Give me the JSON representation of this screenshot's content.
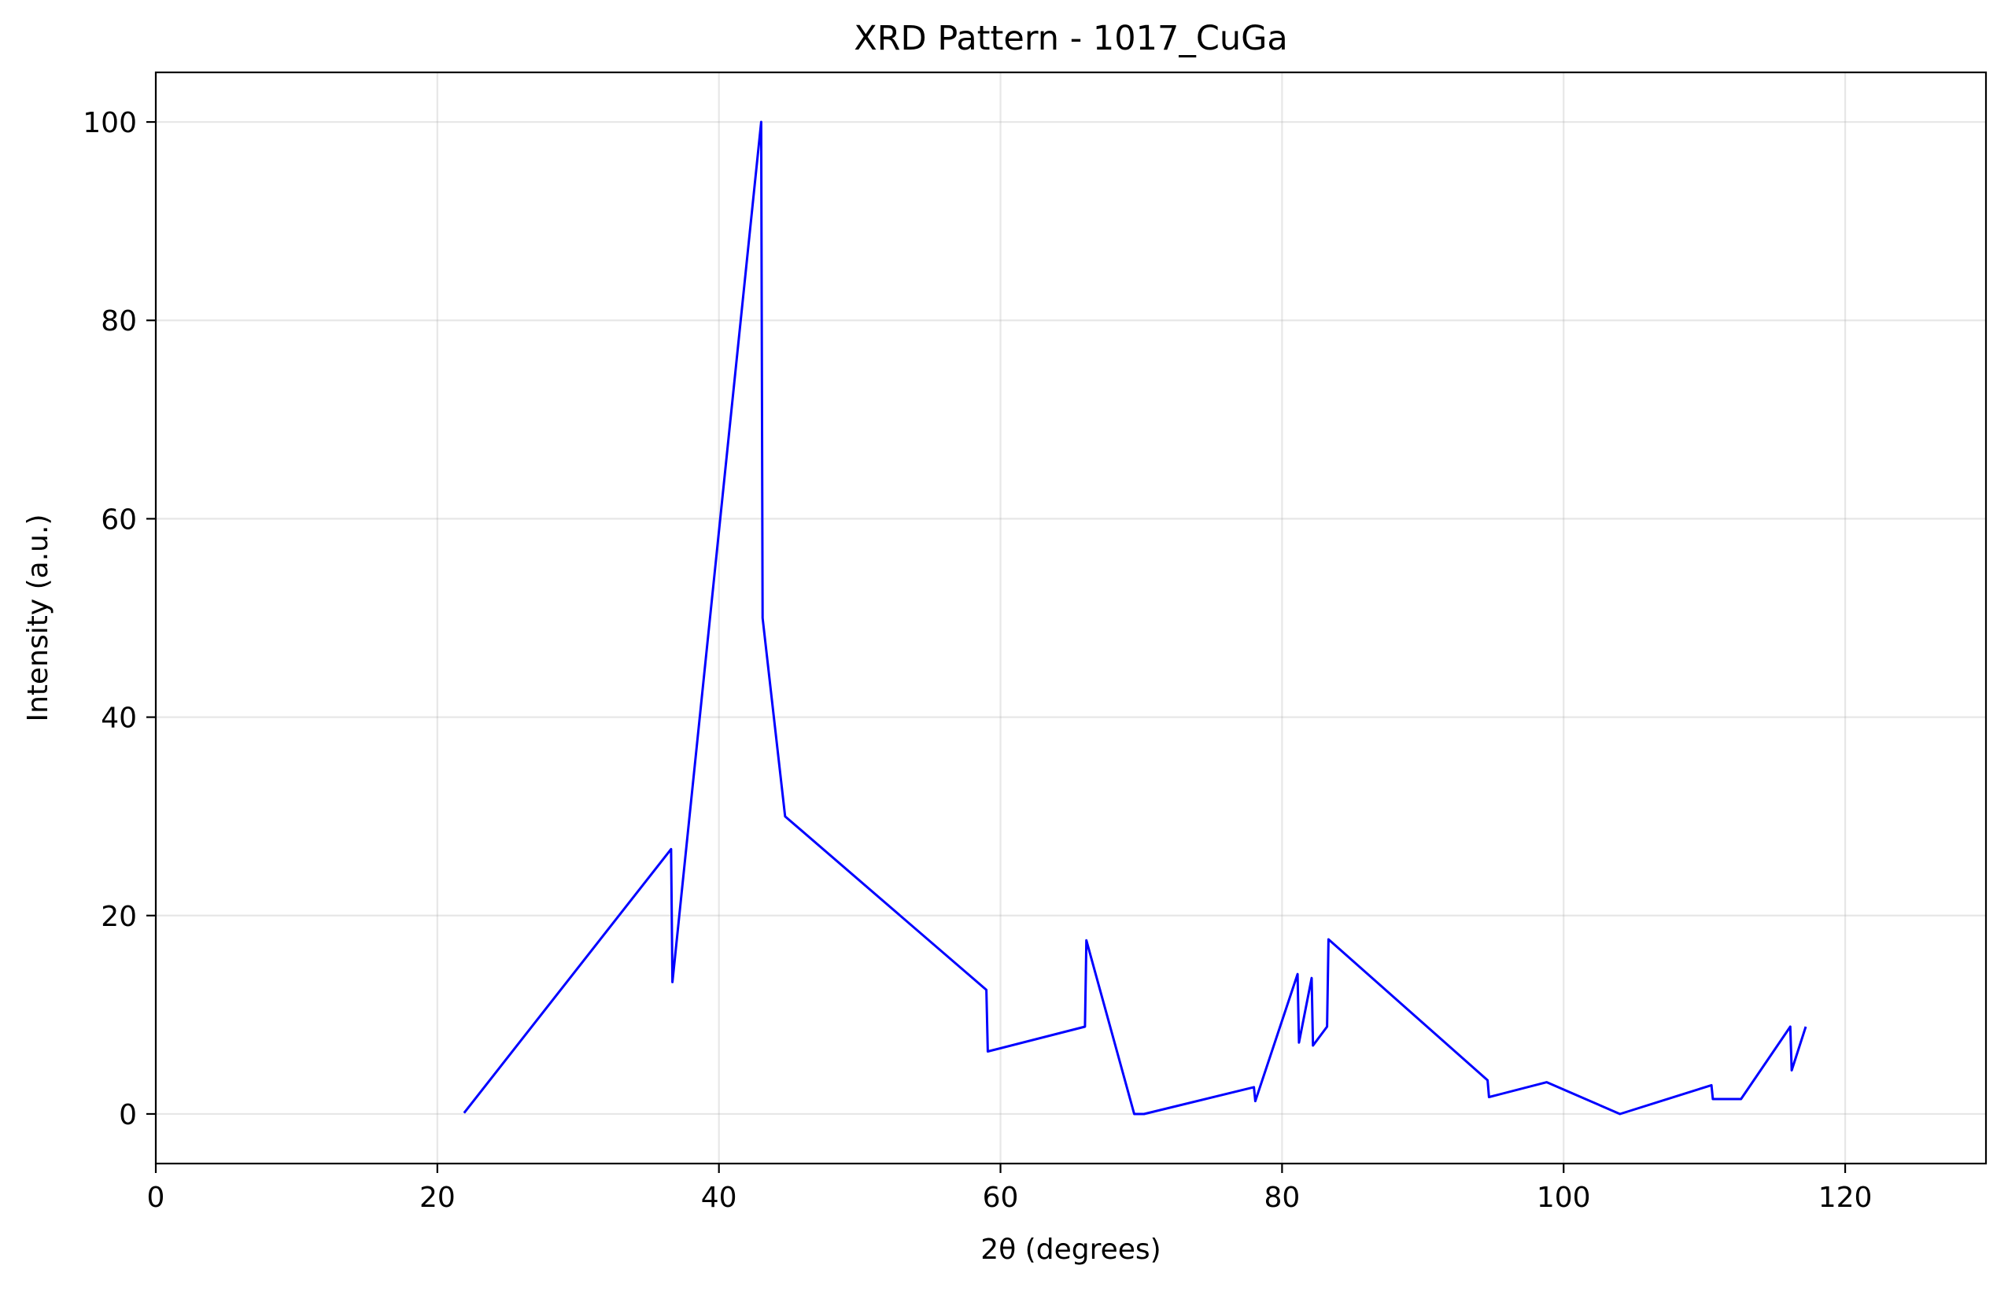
{
  "chart_data": {
    "type": "line",
    "title": "XRD Pattern - 1017_CuGa",
    "xlabel": "2θ (degrees)",
    "ylabel": "Intensity (a.u.)",
    "xlim": [
      0,
      130
    ],
    "ylim": [
      -5,
      105
    ],
    "xticks": [
      0,
      20,
      40,
      60,
      80,
      100,
      120
    ],
    "yticks": [
      0,
      20,
      40,
      60,
      80,
      100
    ],
    "grid": true,
    "legend": "none",
    "series_color": "#0000ff",
    "series": [
      {
        "x": [
          21.9,
          36.6,
          36.7,
          43.0,
          43.1,
          44.7,
          59.0,
          59.1,
          66.0,
          66.1,
          69.5,
          70.2,
          78.0,
          78.1,
          81.1,
          81.2,
          82.1,
          82.2,
          83.2,
          83.3,
          94.6,
          94.7,
          98.8,
          104.0,
          110.5,
          110.6,
          112.6,
          116.1,
          116.2,
          117.2
        ],
        "y": [
          0.1,
          26.7,
          13.3,
          100.0,
          50.0,
          30.0,
          12.5,
          6.3,
          8.8,
          17.5,
          0.0,
          0.0,
          2.7,
          1.3,
          14.1,
          7.2,
          13.7,
          6.9,
          8.8,
          17.6,
          3.4,
          1.7,
          3.2,
          0.0,
          2.9,
          1.5,
          1.5,
          8.8,
          4.4,
          8.8
        ]
      }
    ]
  }
}
